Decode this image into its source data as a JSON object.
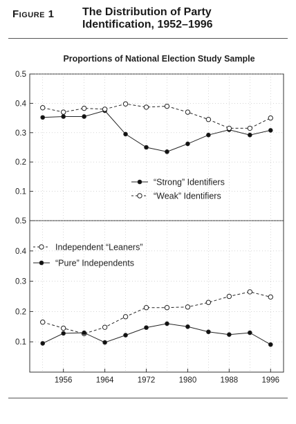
{
  "figure": {
    "label": "Figure 1",
    "title_line1": "The Distribution of Party",
    "title_line2": "Identification, 1952–1996"
  },
  "chart_data": [
    {
      "type": "line",
      "title": "Proportions of National Election Study Sample",
      "x": [
        1952,
        1956,
        1960,
        1964,
        1968,
        1972,
        1976,
        1980,
        1984,
        1988,
        1992,
        1996
      ],
      "ylim": [
        0,
        0.5
      ],
      "yticks": [
        "0.1",
        "0.2",
        "0.3",
        "0.4",
        "0.5"
      ],
      "grid": "dotted",
      "legend_placement": "bottom-right",
      "series": [
        {
          "name": "“Strong” Identifiers",
          "marker": "filled",
          "line": "solid",
          "values": [
            0.352,
            0.355,
            0.355,
            0.375,
            0.295,
            0.25,
            0.235,
            0.262,
            0.292,
            0.31,
            0.292,
            0.308
          ]
        },
        {
          "name": "“Weak” Identifiers",
          "marker": "open",
          "line": "dashed",
          "values": [
            0.385,
            0.37,
            0.383,
            0.38,
            0.398,
            0.387,
            0.39,
            0.37,
            0.345,
            0.315,
            0.315,
            0.35
          ]
        }
      ]
    },
    {
      "type": "line",
      "x": [
        1952,
        1956,
        1960,
        1964,
        1968,
        1972,
        1976,
        1980,
        1984,
        1988,
        1992,
        1996
      ],
      "xticks": [
        "1956",
        "1964",
        "1972",
        "1980",
        "1988",
        "1996"
      ],
      "ylim": [
        0,
        0.5
      ],
      "yticks": [
        "0.1",
        "0.2",
        "0.3",
        "0.4",
        "0.5"
      ],
      "grid": "dotted",
      "legend_placement": "top-left",
      "series": [
        {
          "name": "Independent “Leaners”",
          "marker": "open",
          "line": "dashed",
          "values": [
            0.165,
            0.145,
            0.127,
            0.148,
            0.183,
            0.213,
            0.213,
            0.215,
            0.23,
            0.25,
            0.265,
            0.248
          ]
        },
        {
          "name": "“Pure” Independents",
          "marker": "filled",
          "line": "solid",
          "values": [
            0.095,
            0.128,
            0.13,
            0.098,
            0.122,
            0.147,
            0.16,
            0.15,
            0.133,
            0.124,
            0.13,
            0.091
          ]
        }
      ]
    }
  ]
}
